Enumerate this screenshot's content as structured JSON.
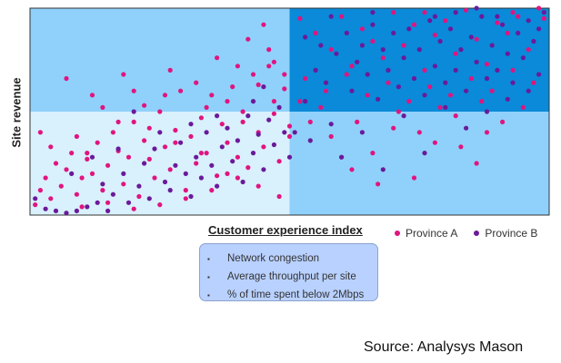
{
  "chart_data": {
    "type": "scatter",
    "title": "",
    "xlabel": "Customer experience index",
    "ylabel": "Site revenue",
    "xlim": [
      0,
      100
    ],
    "ylim": [
      0,
      100
    ],
    "grid": false,
    "legend_position": "bottom-right",
    "quadrant_split": {
      "x": 50,
      "y": 50
    },
    "quadrant_colors": {
      "top_left": "#8fd1fb",
      "top_right": "#0a8ad8",
      "bottom_left": "#d9f0fd",
      "bottom_right": "#8fd1fb"
    },
    "series": [
      {
        "name": "Province A",
        "color": "#e0157f",
        "points": [
          [
            1,
            5
          ],
          [
            2,
            12
          ],
          [
            3,
            18
          ],
          [
            4,
            8
          ],
          [
            5,
            25
          ],
          [
            6,
            14
          ],
          [
            7,
            22
          ],
          [
            8,
            30
          ],
          [
            9,
            10
          ],
          [
            10,
            18
          ],
          [
            11,
            27
          ],
          [
            12,
            20
          ],
          [
            13,
            35
          ],
          [
            14,
            12
          ],
          [
            15,
            24
          ],
          [
            16,
            40
          ],
          [
            17,
            31
          ],
          [
            18,
            15
          ],
          [
            19,
            28
          ],
          [
            20,
            45
          ],
          [
            21,
            9
          ],
          [
            22,
            36
          ],
          [
            23,
            27
          ],
          [
            24,
            18
          ],
          [
            25,
            50
          ],
          [
            26,
            33
          ],
          [
            27,
            22
          ],
          [
            28,
            41
          ],
          [
            29,
            60
          ],
          [
            30,
            12
          ],
          [
            31,
            38
          ],
          [
            32,
            25
          ],
          [
            33,
            47
          ],
          [
            34,
            30
          ],
          [
            35,
            58
          ],
          [
            36,
            19
          ],
          [
            37,
            44
          ],
          [
            38,
            35
          ],
          [
            39,
            62
          ],
          [
            40,
            28
          ],
          [
            41,
            50
          ],
          [
            42,
            23
          ],
          [
            43,
            68
          ],
          [
            44,
            40
          ],
          [
            45,
            33
          ],
          [
            46,
            72
          ],
          [
            47,
            49
          ],
          [
            48,
            26
          ],
          [
            49,
            61
          ],
          [
            50,
            38
          ],
          [
            7,
            66
          ],
          [
            12,
            58
          ],
          [
            18,
            68
          ],
          [
            22,
            53
          ],
          [
            27,
            70
          ],
          [
            32,
            64
          ],
          [
            36,
            76
          ],
          [
            38,
            55
          ],
          [
            40,
            72
          ],
          [
            42,
            85
          ],
          [
            44,
            63
          ],
          [
            45,
            92
          ],
          [
            46,
            80
          ],
          [
            47,
            74
          ],
          [
            49,
            68
          ],
          [
            40,
            18
          ],
          [
            35,
            12
          ],
          [
            30,
            8
          ],
          [
            25,
            5
          ],
          [
            20,
            3
          ],
          [
            15,
            6
          ],
          [
            10,
            4
          ],
          [
            44,
            14
          ],
          [
            48,
            9
          ],
          [
            38,
            20
          ],
          [
            33,
            30
          ],
          [
            28,
            35
          ],
          [
            23,
            42
          ],
          [
            17,
            45
          ],
          [
            9,
            38
          ],
          [
            4,
            33
          ],
          [
            2,
            40
          ],
          [
            14,
            52
          ],
          [
            20,
            60
          ],
          [
            26,
            58
          ],
          [
            34,
            52
          ],
          [
            41,
            45
          ],
          [
            47,
            55
          ],
          [
            50,
            43
          ],
          [
            11,
            30
          ],
          [
            52,
            95
          ],
          [
            55,
            88
          ],
          [
            58,
            80
          ],
          [
            60,
            96
          ],
          [
            62,
            72
          ],
          [
            64,
            90
          ],
          [
            66,
            84
          ],
          [
            68,
            76
          ],
          [
            70,
            98
          ],
          [
            72,
            82
          ],
          [
            74,
            92
          ],
          [
            76,
            70
          ],
          [
            78,
            87
          ],
          [
            80,
            94
          ],
          [
            82,
            78
          ],
          [
            84,
            99
          ],
          [
            86,
            85
          ],
          [
            88,
            73
          ],
          [
            90,
            93
          ],
          [
            92,
            88
          ],
          [
            94,
            96
          ],
          [
            96,
            80
          ],
          [
            98,
            100
          ],
          [
            99,
            95
          ],
          [
            53,
            66
          ],
          [
            57,
            60
          ],
          [
            61,
            68
          ],
          [
            65,
            58
          ],
          [
            69,
            64
          ],
          [
            73,
            55
          ],
          [
            77,
            62
          ],
          [
            81,
            58
          ],
          [
            85,
            66
          ],
          [
            89,
            60
          ],
          [
            93,
            70
          ],
          [
            97,
            64
          ],
          [
            54,
            45
          ],
          [
            58,
            38
          ],
          [
            62,
            22
          ],
          [
            66,
            30
          ],
          [
            70,
            42
          ],
          [
            74,
            18
          ],
          [
            78,
            35
          ],
          [
            82,
            48
          ],
          [
            86,
            25
          ],
          [
            88,
            40
          ],
          [
            56,
            52
          ],
          [
            60,
            28
          ],
          [
            63,
            45
          ],
          [
            67,
            15
          ],
          [
            71,
            50
          ],
          [
            75,
            40
          ],
          [
            79,
            52
          ],
          [
            83,
            33
          ],
          [
            87,
            55
          ],
          [
            91,
            45
          ],
          [
            95,
            52
          ],
          [
            52,
            55
          ],
          [
            76,
            98
          ],
          [
            93,
            98
          ]
        ]
      },
      {
        "name": "Province B",
        "color": "#6a1a9a",
        "points": [
          [
            1,
            8
          ],
          [
            3,
            3
          ],
          [
            5,
            2
          ],
          [
            7,
            1
          ],
          [
            9,
            2
          ],
          [
            11,
            4
          ],
          [
            13,
            6
          ],
          [
            14,
            15
          ],
          [
            15,
            2
          ],
          [
            16,
            10
          ],
          [
            18,
            20
          ],
          [
            19,
            6
          ],
          [
            21,
            14
          ],
          [
            22,
            25
          ],
          [
            23,
            8
          ],
          [
            24,
            32
          ],
          [
            26,
            16
          ],
          [
            27,
            12
          ],
          [
            28,
            24
          ],
          [
            29,
            35
          ],
          [
            30,
            20
          ],
          [
            31,
            9
          ],
          [
            32,
            28
          ],
          [
            33,
            18
          ],
          [
            34,
            40
          ],
          [
            35,
            24
          ],
          [
            36,
            14
          ],
          [
            37,
            33
          ],
          [
            38,
            42
          ],
          [
            39,
            26
          ],
          [
            40,
            36
          ],
          [
            41,
            16
          ],
          [
            42,
            48
          ],
          [
            43,
            30
          ],
          [
            44,
            39
          ],
          [
            45,
            22
          ],
          [
            46,
            46
          ],
          [
            47,
            34
          ],
          [
            48,
            52
          ],
          [
            49,
            40
          ],
          [
            50,
            28
          ],
          [
            12,
            28
          ],
          [
            17,
            32
          ],
          [
            25,
            40
          ],
          [
            31,
            44
          ],
          [
            36,
            48
          ],
          [
            43,
            55
          ],
          [
            8,
            20
          ],
          [
            20,
            50
          ],
          [
            45,
            62
          ],
          [
            51,
            40
          ],
          [
            53,
            55
          ],
          [
            55,
            70
          ],
          [
            56,
            82
          ],
          [
            57,
            64
          ],
          [
            59,
            78
          ],
          [
            61,
            88
          ],
          [
            62,
            60
          ],
          [
            63,
            74
          ],
          [
            64,
            82
          ],
          [
            65,
            68
          ],
          [
            66,
            92
          ],
          [
            67,
            56
          ],
          [
            68,
            80
          ],
          [
            69,
            70
          ],
          [
            70,
            88
          ],
          [
            71,
            62
          ],
          [
            72,
            76
          ],
          [
            73,
            90
          ],
          [
            74,
            66
          ],
          [
            75,
            80
          ],
          [
            76,
            58
          ],
          [
            77,
            94
          ],
          [
            78,
            72
          ],
          [
            79,
            84
          ],
          [
            80,
            64
          ],
          [
            81,
            90
          ],
          [
            82,
            70
          ],
          [
            83,
            80
          ],
          [
            84,
            60
          ],
          [
            85,
            86
          ],
          [
            86,
            74
          ],
          [
            87,
            96
          ],
          [
            88,
            66
          ],
          [
            89,
            82
          ],
          [
            90,
            70
          ],
          [
            91,
            92
          ],
          [
            92,
            78
          ],
          [
            93,
            64
          ],
          [
            94,
            88
          ],
          [
            95,
            76
          ],
          [
            96,
            94
          ],
          [
            97,
            84
          ],
          [
            98,
            90
          ],
          [
            99,
            98
          ],
          [
            54,
            36
          ],
          [
            58,
            44
          ],
          [
            60,
            28
          ],
          [
            64,
            40
          ],
          [
            68,
            22
          ],
          [
            72,
            48
          ],
          [
            76,
            30
          ],
          [
            80,
            52
          ],
          [
            84,
            42
          ],
          [
            88,
            50
          ],
          [
            92,
            56
          ],
          [
            96,
            60
          ],
          [
            98,
            68
          ],
          [
            90,
            96
          ],
          [
            86,
            100
          ],
          [
            82,
            98
          ],
          [
            78,
            96
          ],
          [
            66,
            98
          ],
          [
            58,
            96
          ],
          [
            53,
            86
          ]
        ]
      }
    ]
  },
  "factors": {
    "items": [
      "Network congestion",
      "Average throughput per site",
      "% of time spent below 2Mbps"
    ],
    "bullet": "▪"
  },
  "source": "Source: Analysys Mason"
}
